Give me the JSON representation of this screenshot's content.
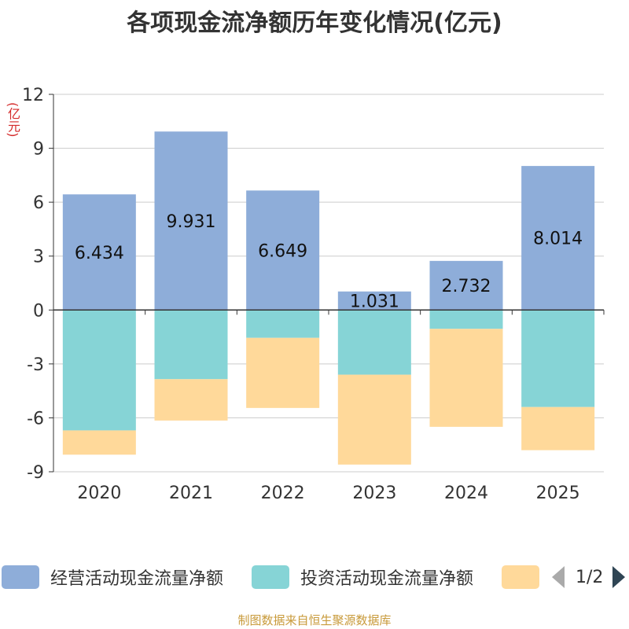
{
  "chart_data": {
    "type": "bar",
    "stacked": true,
    "title": "各项现金流净额历年变化情况(亿元)",
    "ylabel": "(亿元)",
    "categories": [
      "2020",
      "2021",
      "2022",
      "2023",
      "2024",
      "2025"
    ],
    "ylim": [
      -9,
      12
    ],
    "yticks": [
      12,
      9,
      6,
      3,
      0,
      -3,
      -6,
      -9
    ],
    "ytick_labels": [
      "12",
      "9",
      "6",
      "3",
      "0",
      "-3",
      "-6",
      "-9"
    ],
    "grid": true,
    "series": [
      {
        "name": "经营活动现金流量净额",
        "color": "#8eadd9",
        "values": [
          6.434,
          9.931,
          6.649,
          1.031,
          2.732,
          8.014
        ],
        "labels": [
          "6.434",
          "9.931",
          "6.649",
          "1.031",
          "2.732",
          "8.014"
        ]
      },
      {
        "name": "投资活动现金流量净额",
        "color": "#86d4d6",
        "values": [
          -6.7,
          -3.85,
          -1.55,
          -3.6,
          -1.05,
          -5.4
        ]
      },
      {
        "name": "",
        "color": "#ffd99a",
        "values": [
          -1.35,
          -2.3,
          -3.9,
          -5.0,
          -5.45,
          -2.4
        ]
      }
    ]
  },
  "legend": {
    "items": [
      {
        "label": "经营活动现金流量净额",
        "color": "#8eadd9"
      },
      {
        "label": "投资活动现金流量净额",
        "color": "#86d4d6"
      },
      {
        "label": "",
        "color": "#ffd99a"
      }
    ],
    "page": "1/2"
  },
  "footer": "制图数据来自恒生聚源数据库"
}
